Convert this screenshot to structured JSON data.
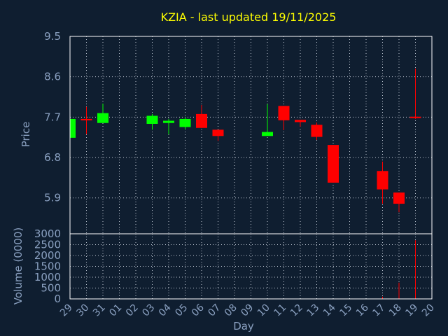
{
  "chart_data": {
    "type": "candlestick",
    "title": "KZIA - last updated 19/11/2025",
    "xlabel": "Day",
    "price_panel": {
      "ylabel": "Price",
      "ylim": [
        5.1,
        9.5
      ],
      "yticks": [
        9.5,
        8.6,
        7.7,
        6.8,
        5.9
      ],
      "grid": true
    },
    "volume_panel": {
      "ylabel": "Volume (0000)",
      "ylim": [
        0,
        3000
      ],
      "yticks": [
        3000,
        2500,
        2000,
        1500,
        1000,
        500,
        0
      ],
      "grid": true
    },
    "x_ticks": [
      "29",
      "30",
      "31",
      "01",
      "02",
      "03",
      "04",
      "05",
      "06",
      "07",
      "08",
      "09",
      "10",
      "11",
      "12",
      "13",
      "14",
      "15",
      "16",
      "17",
      "18",
      "19",
      "20"
    ],
    "candles": [
      {
        "day": "29",
        "open": 7.24,
        "high": 7.66,
        "low": 7.24,
        "close": 7.66
      },
      {
        "day": "30",
        "open": 7.66,
        "high": 7.93,
        "low": 7.32,
        "close": 7.63
      },
      {
        "day": "31",
        "open": 7.57,
        "high": 8.0,
        "low": 7.57,
        "close": 7.79
      },
      {
        "day": "03",
        "open": 7.55,
        "high": 7.77,
        "low": 7.42,
        "close": 7.73
      },
      {
        "day": "04",
        "open": 7.57,
        "high": 7.66,
        "low": 7.32,
        "close": 7.62
      },
      {
        "day": "05",
        "open": 7.48,
        "high": 7.7,
        "low": 7.43,
        "close": 7.66
      },
      {
        "day": "06",
        "open": 7.77,
        "high": 7.97,
        "low": 7.46,
        "close": 7.46
      },
      {
        "day": "07",
        "open": 7.42,
        "high": 7.42,
        "low": 7.17,
        "close": 7.28
      },
      {
        "day": "10",
        "open": 7.28,
        "high": 7.99,
        "low": 7.28,
        "close": 7.37
      },
      {
        "day": "11",
        "open": 7.95,
        "high": 7.95,
        "low": 7.41,
        "close": 7.63
      },
      {
        "day": "12",
        "open": 7.64,
        "high": 7.64,
        "low": 7.49,
        "close": 7.59
      },
      {
        "day": "13",
        "open": 7.53,
        "high": 7.58,
        "low": 7.19,
        "close": 7.26
      },
      {
        "day": "14",
        "open": 7.08,
        "high": 7.08,
        "low": 6.24,
        "close": 6.24
      },
      {
        "day": "17",
        "open": 6.5,
        "high": 6.71,
        "low": 5.77,
        "close": 6.09
      },
      {
        "day": "18",
        "open": 6.02,
        "high": 6.02,
        "low": 5.58,
        "close": 5.77
      },
      {
        "day": "19",
        "open": 7.71,
        "high": 8.78,
        "low": 7.66,
        "close": 7.69
      }
    ],
    "up_color": "#00ff00",
    "down_color": "#ff0000",
    "volume": [
      {
        "day": "17",
        "value": 100,
        "color": "#ff0000"
      },
      {
        "day": "18",
        "value": 750,
        "color": "#ff0000"
      },
      {
        "day": "19",
        "value": 2700,
        "color": "#ff0000"
      }
    ]
  }
}
